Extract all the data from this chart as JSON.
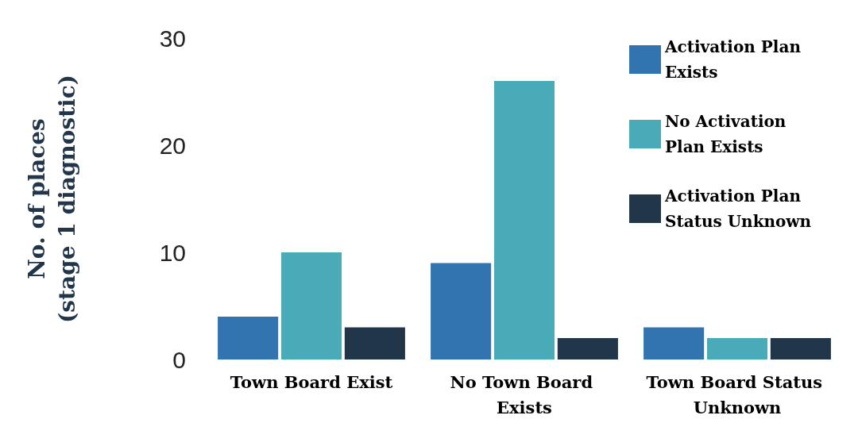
{
  "chart_data": {
    "type": "bar",
    "ylabel": "No. of places (stage 1 diagnostic)",
    "categories": [
      "Town Board Exist",
      "No Town Board Exists",
      "Town Board Status Unknown"
    ],
    "series": [
      {
        "name": "Activation Plan Exists",
        "color": "#3174b0",
        "values": [
          4,
          9,
          3
        ]
      },
      {
        "name": "No Activation Plan Exists",
        "color": "#4aabb8",
        "values": [
          10,
          26,
          2
        ]
      },
      {
        "name": "Activation Plan Status Unknown",
        "color": "#22364a",
        "values": [
          3,
          2,
          2
        ]
      }
    ],
    "ylim": [
      0,
      30
    ],
    "yticks": [
      0,
      10,
      20,
      30
    ],
    "grid": false,
    "legend": "top right"
  }
}
